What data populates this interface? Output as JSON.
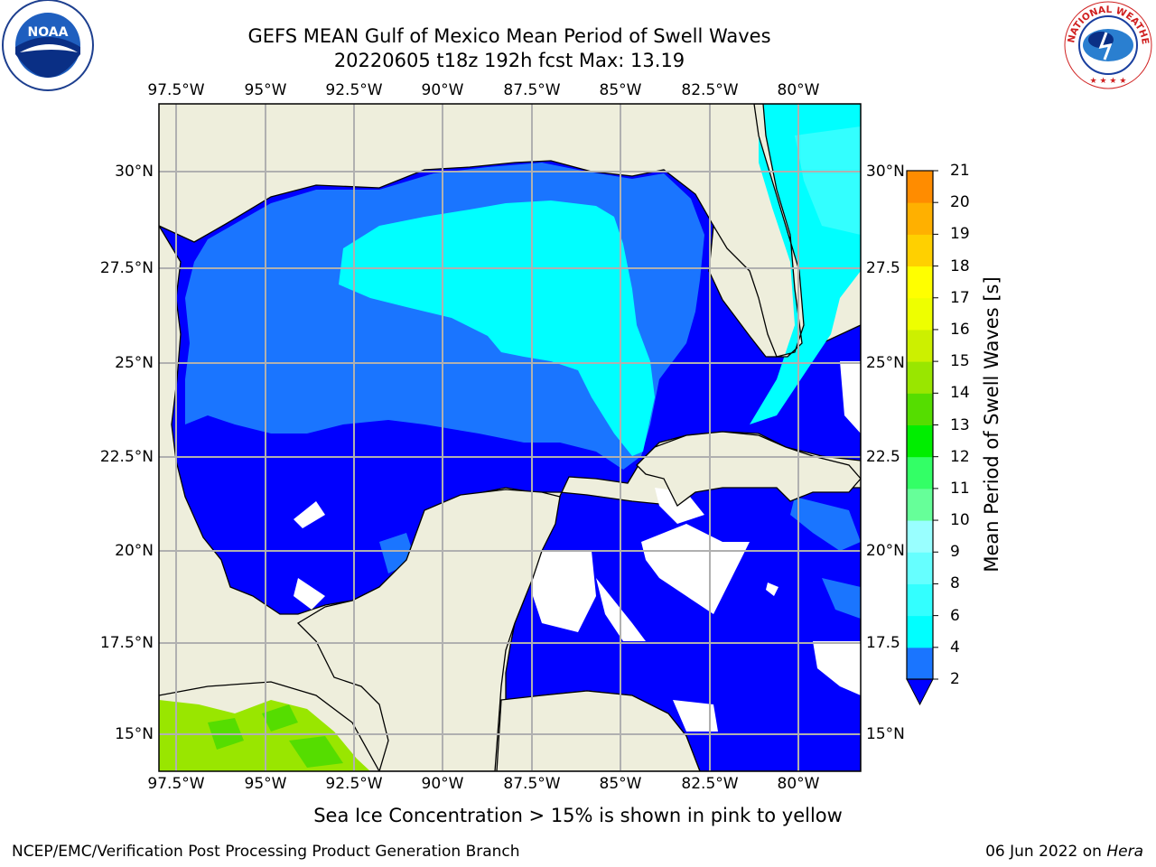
{
  "header": {
    "title_line1": "GEFS MEAN Gulf of Mexico Mean Period of Swell Waves",
    "title_line2": "20220605 t18z 192h fcst   Max: 13.19"
  },
  "logos": {
    "left": "noaa-logo",
    "right": "national-weather-service-logo",
    "left_text": "NOAA",
    "right_text": "NATIONAL WEATHER SERVICE"
  },
  "map": {
    "lon_ticks": [
      "97.5°W",
      "95°W",
      "92.5°W",
      "90°W",
      "87.5°W",
      "85°W",
      "82.5°W",
      "80°W"
    ],
    "lat_ticks": [
      "30°N",
      "27.5°N",
      "25°N",
      "22.5°N",
      "20°N",
      "17.5°N",
      "15°N"
    ],
    "lat_ticks_right": [
      "30°N",
      "27.5",
      "25°N",
      "22.5",
      "20°N",
      "17.5",
      "15°N"
    ],
    "extent": {
      "lon_min": -98.0,
      "lon_max": -78.2,
      "lat_min": 14.0,
      "lat_max": 31.8
    },
    "land_color": "#eeeedc",
    "grid_color": "#b0b0b0"
  },
  "colorbar": {
    "label": "Mean Period of Swell Waves [s]",
    "ticks": [
      "2",
      "4",
      "6",
      "8",
      "9",
      "10",
      "11",
      "12",
      "13",
      "14",
      "15",
      "16",
      "17",
      "18",
      "19",
      "20",
      "21"
    ],
    "levels": [
      2,
      3,
      4,
      5,
      6,
      7,
      8,
      9,
      10,
      11,
      12,
      13,
      14,
      15,
      16,
      17,
      18,
      19,
      20,
      21
    ],
    "colors": [
      "#1a75ff",
      "#00bfff",
      "#00ffff",
      "#33ffff",
      "#66ffff",
      "#99ffff",
      "#99ffcc",
      "#66ff99",
      "#33ff66",
      "#00ee00",
      "#55dd00",
      "#99e600",
      "#ccf000",
      "#ffff00",
      "#ffee00",
      "#ffc000",
      "#ffa000",
      "#ff8000",
      "#ff5000",
      "#ff2000",
      "#ff0000"
    ],
    "under_color": "#0000ff"
  },
  "footer": {
    "note": "Sea Ice Concentration > 15% is shown in pink to yellow",
    "left": "NCEP/EMC/Verification Post Processing Product Generation Branch",
    "right_date": "06 Jun 2022 on ",
    "right_host": "Hera"
  }
}
